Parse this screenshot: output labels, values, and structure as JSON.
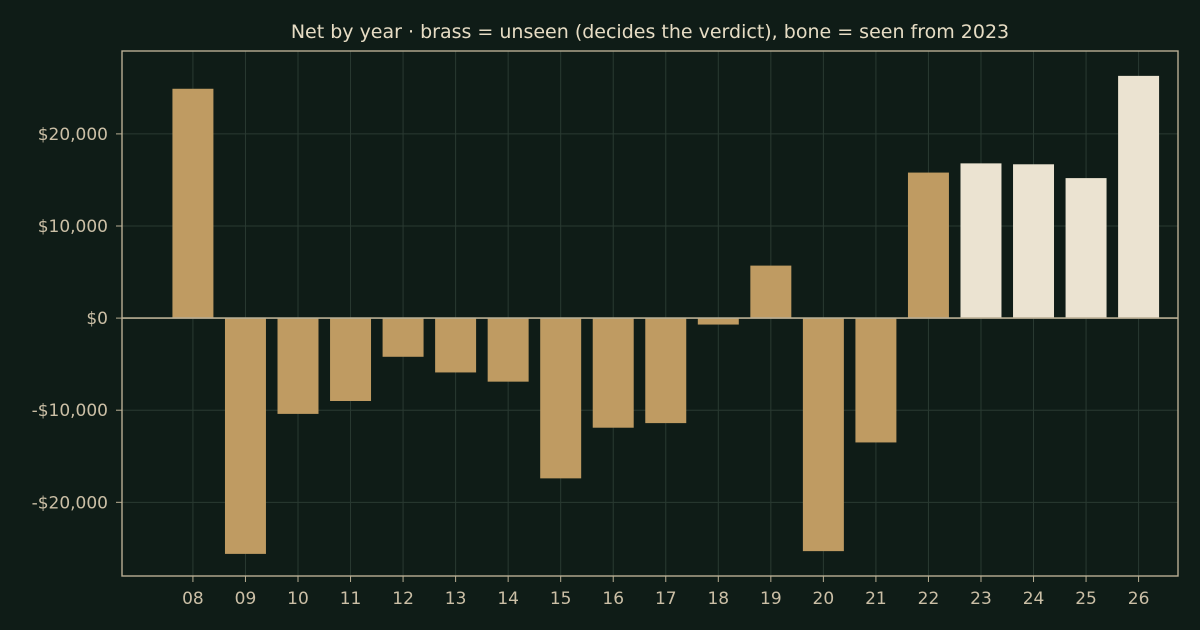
{
  "chart_data": {
    "type": "bar",
    "title": "Net by year  ·  brass = unseen (decides the verdict), bone = seen from 2023",
    "xlabel": "",
    "ylabel": "",
    "categories": [
      "08",
      "09",
      "10",
      "11",
      "12",
      "13",
      "14",
      "15",
      "16",
      "17",
      "18",
      "19",
      "20",
      "21",
      "22",
      "23",
      "24",
      "25",
      "26"
    ],
    "values": [
      24900,
      -25600,
      -10400,
      -9000,
      -4200,
      -5900,
      -6900,
      -17400,
      -11900,
      -11400,
      -700,
      5700,
      -25300,
      -13500,
      15800,
      16800,
      16700,
      15200,
      26300
    ],
    "seen": [
      false,
      false,
      false,
      false,
      false,
      false,
      false,
      false,
      false,
      false,
      false,
      false,
      false,
      false,
      false,
      true,
      true,
      true,
      true
    ],
    "ylim": [
      -28000,
      29000
    ],
    "yticks": [
      -20000,
      -10000,
      0,
      10000,
      20000
    ],
    "ytick_labels": [
      "-$20,000",
      "-$10,000",
      "$0",
      "$10,000",
      "$20,000"
    ],
    "grid": true,
    "colors": {
      "unseen": "#bf9b62",
      "seen": "#ebe3d1",
      "background": "#0f1c17",
      "frame": "#b9ae94",
      "grid": "#2a3a32",
      "text": "#e6dcc4"
    }
  }
}
